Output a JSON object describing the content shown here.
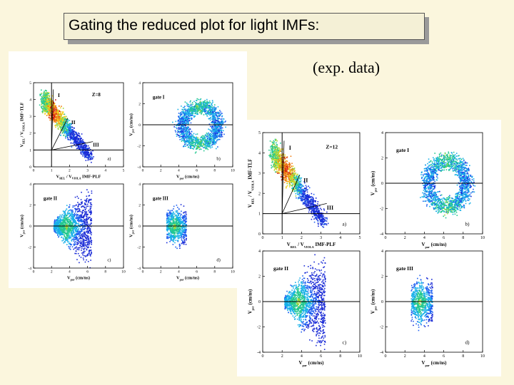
{
  "header": {
    "title": "Gating the reduced plot for light IMFs:",
    "subtitle": "(exp. data)"
  },
  "colors": {
    "background": "#fbf6dd",
    "title_box": "#f4f0d6",
    "shadow": "#9a9a9a"
  },
  "chart_data": [
    {
      "type": "scatter",
      "figure": "left",
      "panels": [
        {
          "id": "a",
          "tag": "a)",
          "label": "Z=8",
          "gates": [
            "I",
            "II",
            "III"
          ],
          "xlabel": [
            "V",
            "REL",
            " / V",
            "VIOLA",
            "  IMF-PLF"
          ],
          "ylabel": [
            "V",
            "REL",
            " / V",
            "VIOLA",
            "  IMF-TLF"
          ],
          "xlim": [
            0,
            5
          ],
          "ylim": [
            0,
            5
          ],
          "xticks": [
            "0",
            "1",
            "2",
            "3",
            "4",
            "5"
          ],
          "yticks": [
            "0",
            "1",
            "2",
            "3",
            "4",
            "5"
          ],
          "lines": {
            "vertical": 1.0,
            "horizontal": 1.0
          }
        },
        {
          "id": "b",
          "tag": "b)",
          "label": "gate I",
          "gates": [],
          "xlabel": [
            "V",
            "par",
            " (cm/ns)"
          ],
          "ylabel": [
            "V",
            "per",
            " (cm/ns)"
          ],
          "xlim": [
            0,
            10
          ],
          "ylim": [
            -4,
            4
          ],
          "xticks": [
            "0",
            "2",
            "4",
            "6",
            "8",
            "10"
          ],
          "yticks": [
            "-4",
            "-2",
            "0",
            "2",
            "4"
          ],
          "lines": {
            "horizontal": 0
          }
        },
        {
          "id": "c",
          "tag": "c)",
          "label": "gate II",
          "gates": [],
          "xlabel": [
            "V",
            "par",
            " (cm/ns)"
          ],
          "ylabel": [
            "V",
            "per",
            " (cm/ns)"
          ],
          "xlim": [
            0,
            10
          ],
          "ylim": [
            -4,
            4
          ],
          "xticks": [
            "0",
            "2",
            "4",
            "6",
            "8",
            "10"
          ],
          "yticks": [
            "-4",
            "-2",
            "0",
            "2",
            "4"
          ],
          "lines": {
            "horizontal": 0
          }
        },
        {
          "id": "d",
          "tag": "d)",
          "label": "gate III",
          "gates": [],
          "xlabel": [
            "V",
            "par",
            " (cm/ns)"
          ],
          "ylabel": [
            "V",
            "per",
            " (cm/ns)"
          ],
          "xlim": [
            0,
            10
          ],
          "ylim": [
            -4,
            4
          ],
          "xticks": [
            "0",
            "2",
            "4",
            "6",
            "8",
            "10"
          ],
          "yticks": [
            "-4",
            "-2",
            "0",
            "2",
            "4"
          ],
          "lines": {
            "horizontal": 0
          }
        }
      ]
    },
    {
      "type": "scatter",
      "figure": "right",
      "panels": [
        {
          "id": "a",
          "tag": "a)",
          "label": "Z=12",
          "gates": [
            "I",
            "II",
            "III"
          ],
          "xlabel": [
            "V",
            "REL",
            " / V",
            "VIOLA",
            "  IMF-PLF"
          ],
          "ylabel": [
            "V",
            "REL",
            " / V",
            "VIOLA",
            "  IMF-TLF"
          ],
          "xlim": [
            0,
            5
          ],
          "ylim": [
            0,
            5
          ],
          "xticks": [
            "0",
            "1",
            "2",
            "3",
            "4",
            "5"
          ],
          "yticks": [
            "0",
            "1",
            "2",
            "3",
            "4",
            "5"
          ],
          "lines": {
            "vertical": 1.0,
            "horizontal": 1.0
          }
        },
        {
          "id": "b",
          "tag": "b)",
          "label": "gate I",
          "gates": [],
          "xlabel": [
            "V",
            "par",
            " (cm/ns)"
          ],
          "ylabel": [
            "V",
            "per",
            " (cm/ns)"
          ],
          "xlim": [
            0,
            10
          ],
          "ylim": [
            -4,
            4
          ],
          "xticks": [
            "0",
            "2",
            "4",
            "6",
            "8",
            "10"
          ],
          "yticks": [
            "-4",
            "-2",
            "0",
            "2",
            "4"
          ],
          "lines": {
            "horizontal": 0
          }
        },
        {
          "id": "c",
          "tag": "c)",
          "label": "gate II",
          "gates": [],
          "xlabel": [
            "V",
            "par",
            " (cm/ns)"
          ],
          "ylabel": [
            "V",
            "per",
            " (cm/ns)"
          ],
          "xlim": [
            0,
            10
          ],
          "ylim": [
            -4,
            4
          ],
          "xticks": [
            "0",
            "2",
            "4",
            "6",
            "8",
            "10"
          ],
          "yticks": [
            "-4",
            "-2",
            "0",
            "2",
            "4"
          ],
          "lines": {
            "horizontal": 0
          }
        },
        {
          "id": "d",
          "tag": "d)",
          "label": "gate III",
          "gates": [],
          "xlabel": [
            "V",
            "par",
            " (cm/ns)"
          ],
          "ylabel": [
            "V",
            "per",
            " (cm/ns)"
          ],
          "xlim": [
            0,
            10
          ],
          "ylim": [
            -4,
            4
          ],
          "xticks": [
            "0",
            "2",
            "4",
            "6",
            "8",
            "10"
          ],
          "yticks": [
            "-4",
            "-2",
            "0",
            "2",
            "4"
          ],
          "lines": {
            "horizontal": 0
          }
        }
      ]
    }
  ]
}
